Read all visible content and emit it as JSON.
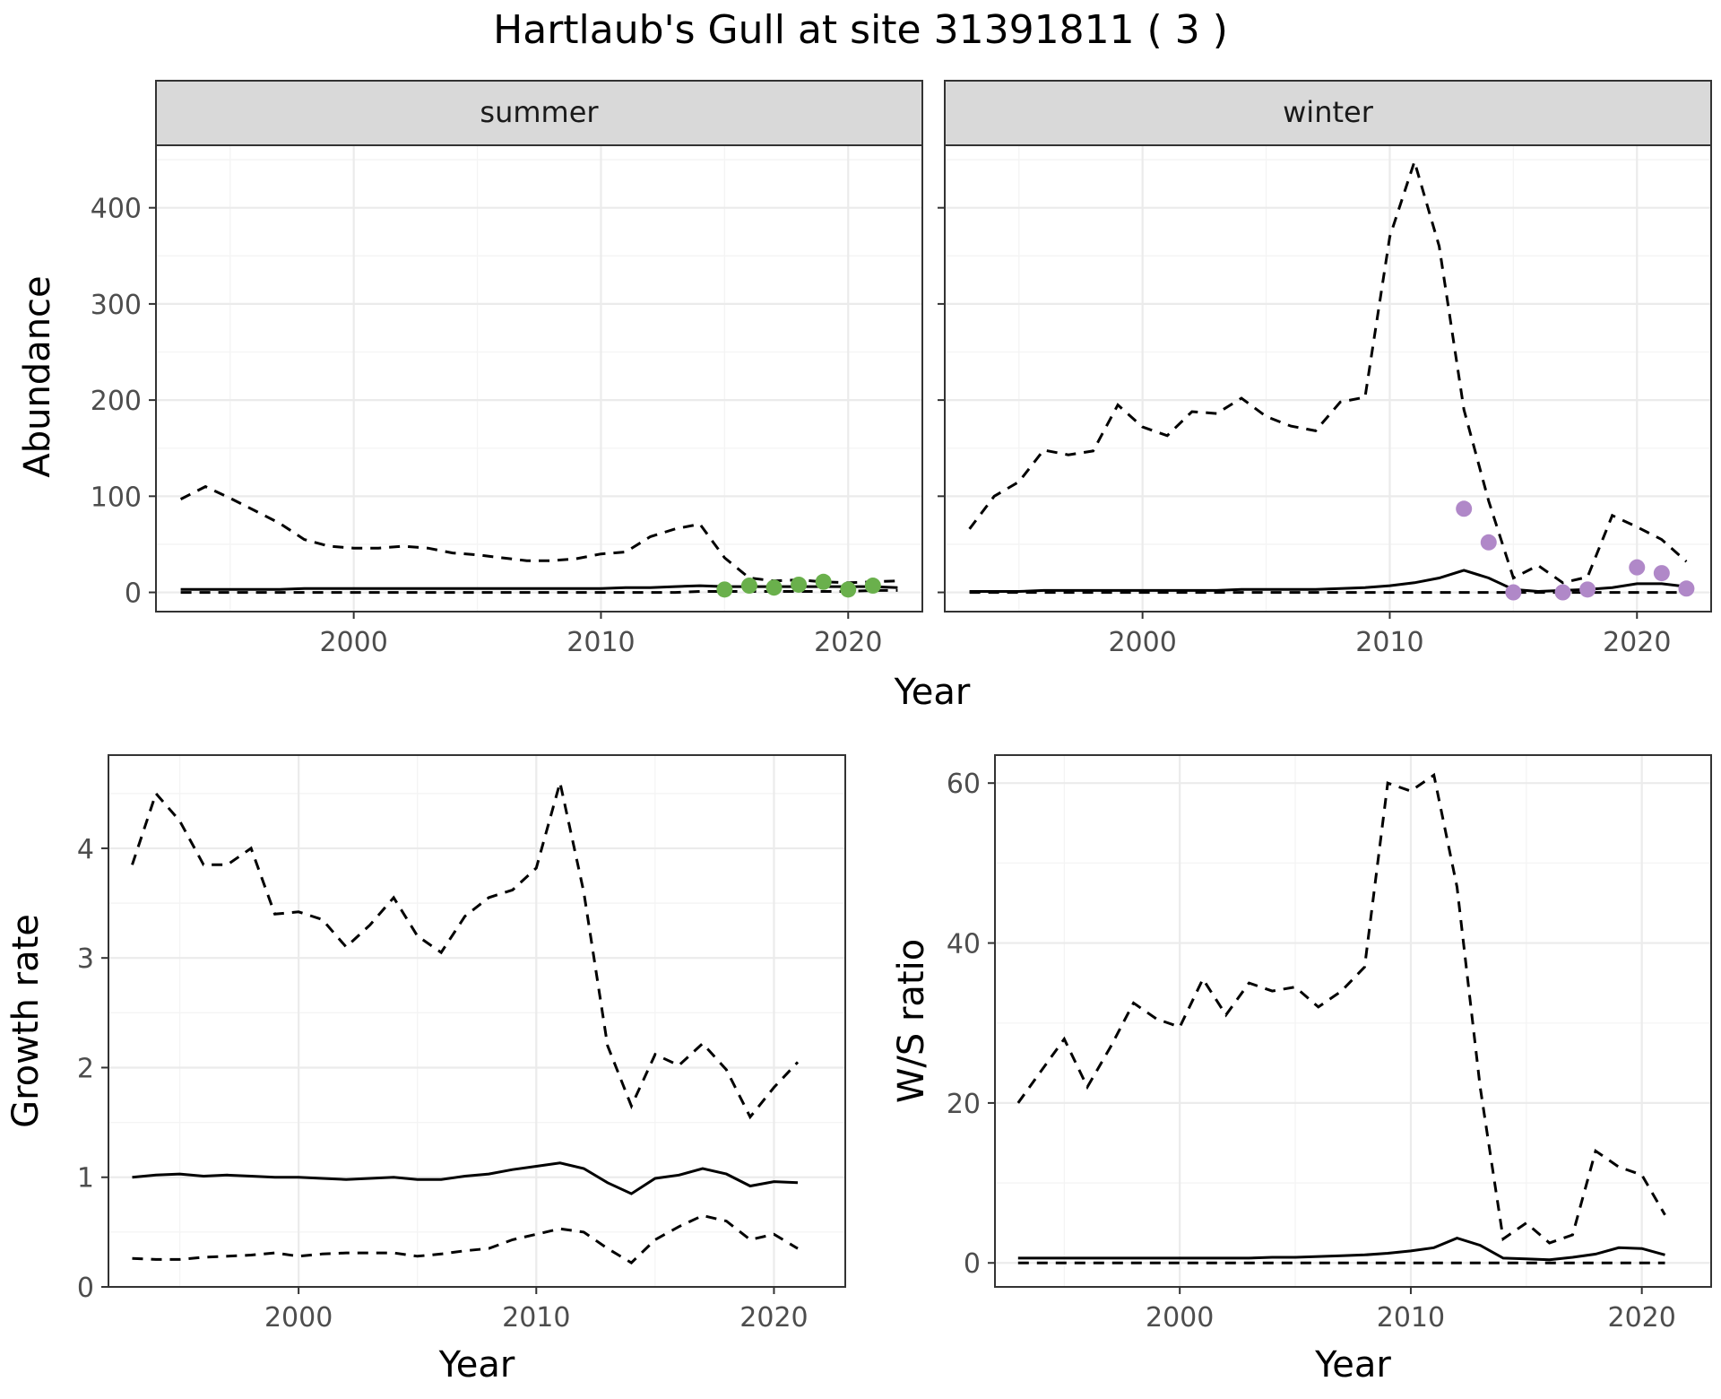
{
  "title": "Hartlaub's Gull at site 31391811 ( 3 )",
  "chart_data": [
    {
      "type": "line",
      "panel": "summer",
      "strip_label": "summer",
      "xlabel": "Year",
      "ylabel": "Abundance",
      "xlim": [
        1992,
        2023
      ],
      "ylim": [
        -20,
        465
      ],
      "xticks": [
        2000,
        2010,
        2020
      ],
      "yticks": [
        0,
        100,
        200,
        300,
        400
      ],
      "grid": true,
      "legend": "none",
      "x": [
        1993,
        1994,
        1995,
        1996,
        1997,
        1998,
        1999,
        2000,
        2001,
        2002,
        2003,
        2004,
        2005,
        2006,
        2007,
        2008,
        2009,
        2010,
        2011,
        2012,
        2013,
        2014,
        2015,
        2016,
        2017,
        2018,
        2019,
        2020,
        2021,
        2022
      ],
      "series": [
        {
          "role": "upper",
          "style": "dashed",
          "values": [
            97,
            110,
            98,
            85,
            72,
            55,
            48,
            46,
            46,
            48,
            46,
            41,
            39,
            36,
            33,
            33,
            35,
            40,
            42,
            58,
            66,
            71,
            36,
            15,
            12,
            13,
            11,
            10,
            11,
            12
          ]
        },
        {
          "role": "estimate",
          "style": "solid",
          "values": [
            3,
            3,
            3,
            3,
            3,
            4,
            4,
            4,
            4,
            4,
            4,
            4,
            4,
            4,
            4,
            4,
            4,
            4,
            5,
            5,
            6,
            7,
            6,
            6,
            6,
            6,
            6,
            6,
            6,
            5
          ]
        },
        {
          "role": "lower",
          "style": "dashed",
          "values": [
            0,
            0,
            0,
            0,
            0,
            0,
            0,
            0,
            0,
            0,
            0,
            0,
            0,
            0,
            0,
            0,
            0,
            0,
            0,
            0,
            0,
            1,
            1,
            1,
            1,
            1,
            1,
            1,
            2,
            2
          ]
        }
      ],
      "points": {
        "color": "#6ab04c",
        "x": [
          2015,
          2016,
          2017,
          2018,
          2019,
          2020,
          2021
        ],
        "y": [
          3,
          7,
          5,
          8,
          11,
          3,
          7
        ]
      }
    },
    {
      "type": "line",
      "panel": "winter",
      "strip_label": "winter",
      "xlabel": "Year",
      "ylabel": "Abundance",
      "xlim": [
        1992,
        2023
      ],
      "ylim": [
        -20,
        465
      ],
      "xticks": [
        2000,
        2010,
        2020
      ],
      "yticks": [
        0,
        100,
        200,
        300,
        400
      ],
      "grid": true,
      "legend": "none",
      "x": [
        1993,
        1994,
        1995,
        1996,
        1997,
        1998,
        1999,
        2000,
        2001,
        2002,
        2003,
        2004,
        2005,
        2006,
        2007,
        2008,
        2009,
        2010,
        2011,
        2012,
        2013,
        2014,
        2015,
        2016,
        2017,
        2018,
        2019,
        2020,
        2021,
        2022
      ],
      "series": [
        {
          "role": "upper",
          "style": "dashed",
          "values": [
            66,
            100,
            115,
            148,
            143,
            147,
            195,
            172,
            163,
            188,
            186,
            202,
            183,
            173,
            168,
            198,
            203,
            370,
            448,
            360,
            190,
            95,
            15,
            28,
            10,
            16,
            80,
            68,
            55,
            32
          ]
        },
        {
          "role": "estimate",
          "style": "solid",
          "values": [
            1,
            1,
            1,
            2,
            2,
            2,
            2,
            2,
            2,
            2,
            2,
            3,
            3,
            3,
            3,
            4,
            5,
            7,
            10,
            15,
            23,
            15,
            3,
            1,
            2,
            3,
            5,
            9,
            9,
            6
          ]
        },
        {
          "role": "lower",
          "style": "dashed",
          "values": [
            0,
            0,
            0,
            0,
            0,
            0,
            0,
            0,
            0,
            0,
            0,
            0,
            0,
            0,
            0,
            0,
            0,
            0,
            0,
            0,
            0,
            0,
            0,
            0,
            0,
            0,
            0,
            0,
            0,
            0
          ]
        }
      ],
      "points": {
        "color": "#b088c8",
        "x": [
          2013,
          2014,
          2015,
          2017,
          2018,
          2020,
          2021,
          2022
        ],
        "y": [
          87,
          52,
          0,
          0,
          3,
          26,
          20,
          4
        ]
      }
    },
    {
      "type": "line",
      "panel": "growth",
      "xlabel": "Year",
      "ylabel": "Growth rate",
      "xlim": [
        1992,
        2023
      ],
      "ylim": [
        0,
        4.85
      ],
      "xticks": [
        2000,
        2010,
        2020
      ],
      "yticks": [
        0,
        1,
        2,
        3,
        4
      ],
      "grid": true,
      "legend": "none",
      "x": [
        1993,
        1994,
        1995,
        1996,
        1997,
        1998,
        1999,
        2000,
        2001,
        2002,
        2003,
        2004,
        2005,
        2006,
        2007,
        2008,
        2009,
        2010,
        2011,
        2012,
        2013,
        2014,
        2015,
        2016,
        2017,
        2018,
        2019,
        2020,
        2021
      ],
      "series": [
        {
          "role": "upper",
          "style": "dashed",
          "values": [
            3.85,
            4.5,
            4.25,
            3.85,
            3.85,
            4.0,
            3.4,
            3.42,
            3.35,
            3.1,
            3.3,
            3.55,
            3.2,
            3.05,
            3.38,
            3.55,
            3.62,
            3.82,
            4.6,
            3.6,
            2.2,
            1.65,
            2.12,
            2.02,
            2.22,
            1.98,
            1.55,
            1.82,
            2.05
          ]
        },
        {
          "role": "estimate",
          "style": "solid",
          "values": [
            1.0,
            1.02,
            1.03,
            1.01,
            1.02,
            1.01,
            1.0,
            1.0,
            0.99,
            0.98,
            0.99,
            1.0,
            0.98,
            0.98,
            1.01,
            1.03,
            1.07,
            1.1,
            1.13,
            1.08,
            0.95,
            0.85,
            0.99,
            1.02,
            1.08,
            1.03,
            0.92,
            0.96,
            0.95
          ]
        },
        {
          "role": "lower",
          "style": "dashed",
          "values": [
            0.26,
            0.25,
            0.25,
            0.27,
            0.28,
            0.29,
            0.31,
            0.28,
            0.3,
            0.31,
            0.31,
            0.31,
            0.28,
            0.3,
            0.33,
            0.35,
            0.43,
            0.48,
            0.53,
            0.5,
            0.35,
            0.22,
            0.43,
            0.55,
            0.65,
            0.6,
            0.43,
            0.48,
            0.35
          ]
        }
      ]
    },
    {
      "type": "line",
      "panel": "ratio",
      "xlabel": "Year",
      "ylabel": "W/S ratio",
      "xlim": [
        1992,
        2023
      ],
      "ylim": [
        -3,
        63.5
      ],
      "xticks": [
        2000,
        2010,
        2020
      ],
      "yticks": [
        0,
        20,
        40,
        60
      ],
      "grid": true,
      "legend": "none",
      "x": [
        1993,
        1994,
        1995,
        1996,
        1997,
        1998,
        1999,
        2000,
        2001,
        2002,
        2003,
        2004,
        2005,
        2006,
        2007,
        2008,
        2009,
        2010,
        2011,
        2012,
        2013,
        2014,
        2015,
        2016,
        2017,
        2018,
        2019,
        2020,
        2021
      ],
      "series": [
        {
          "role": "upper",
          "style": "dashed",
          "values": [
            20,
            24,
            28,
            22,
            27,
            32.5,
            30.5,
            29.5,
            35.5,
            31,
            35,
            34,
            34.5,
            32,
            34,
            37,
            60,
            59,
            61,
            47,
            22,
            3,
            5,
            2.5,
            3.5,
            14,
            12,
            11,
            6
          ]
        },
        {
          "role": "estimate",
          "style": "solid",
          "values": [
            0.6,
            0.6,
            0.6,
            0.6,
            0.6,
            0.6,
            0.6,
            0.6,
            0.6,
            0.6,
            0.6,
            0.7,
            0.7,
            0.8,
            0.9,
            1.0,
            1.2,
            1.5,
            1.9,
            3.1,
            2.2,
            0.6,
            0.5,
            0.4,
            0.7,
            1.1,
            1.9,
            1.8,
            1.0
          ]
        },
        {
          "role": "lower",
          "style": "dashed",
          "values": [
            0,
            0,
            0,
            0,
            0,
            0,
            0,
            0,
            0,
            0,
            0,
            0,
            0,
            0,
            0,
            0,
            0,
            0,
            0,
            0,
            0,
            0,
            0,
            0,
            0,
            0,
            0,
            0,
            0
          ]
        }
      ]
    }
  ]
}
